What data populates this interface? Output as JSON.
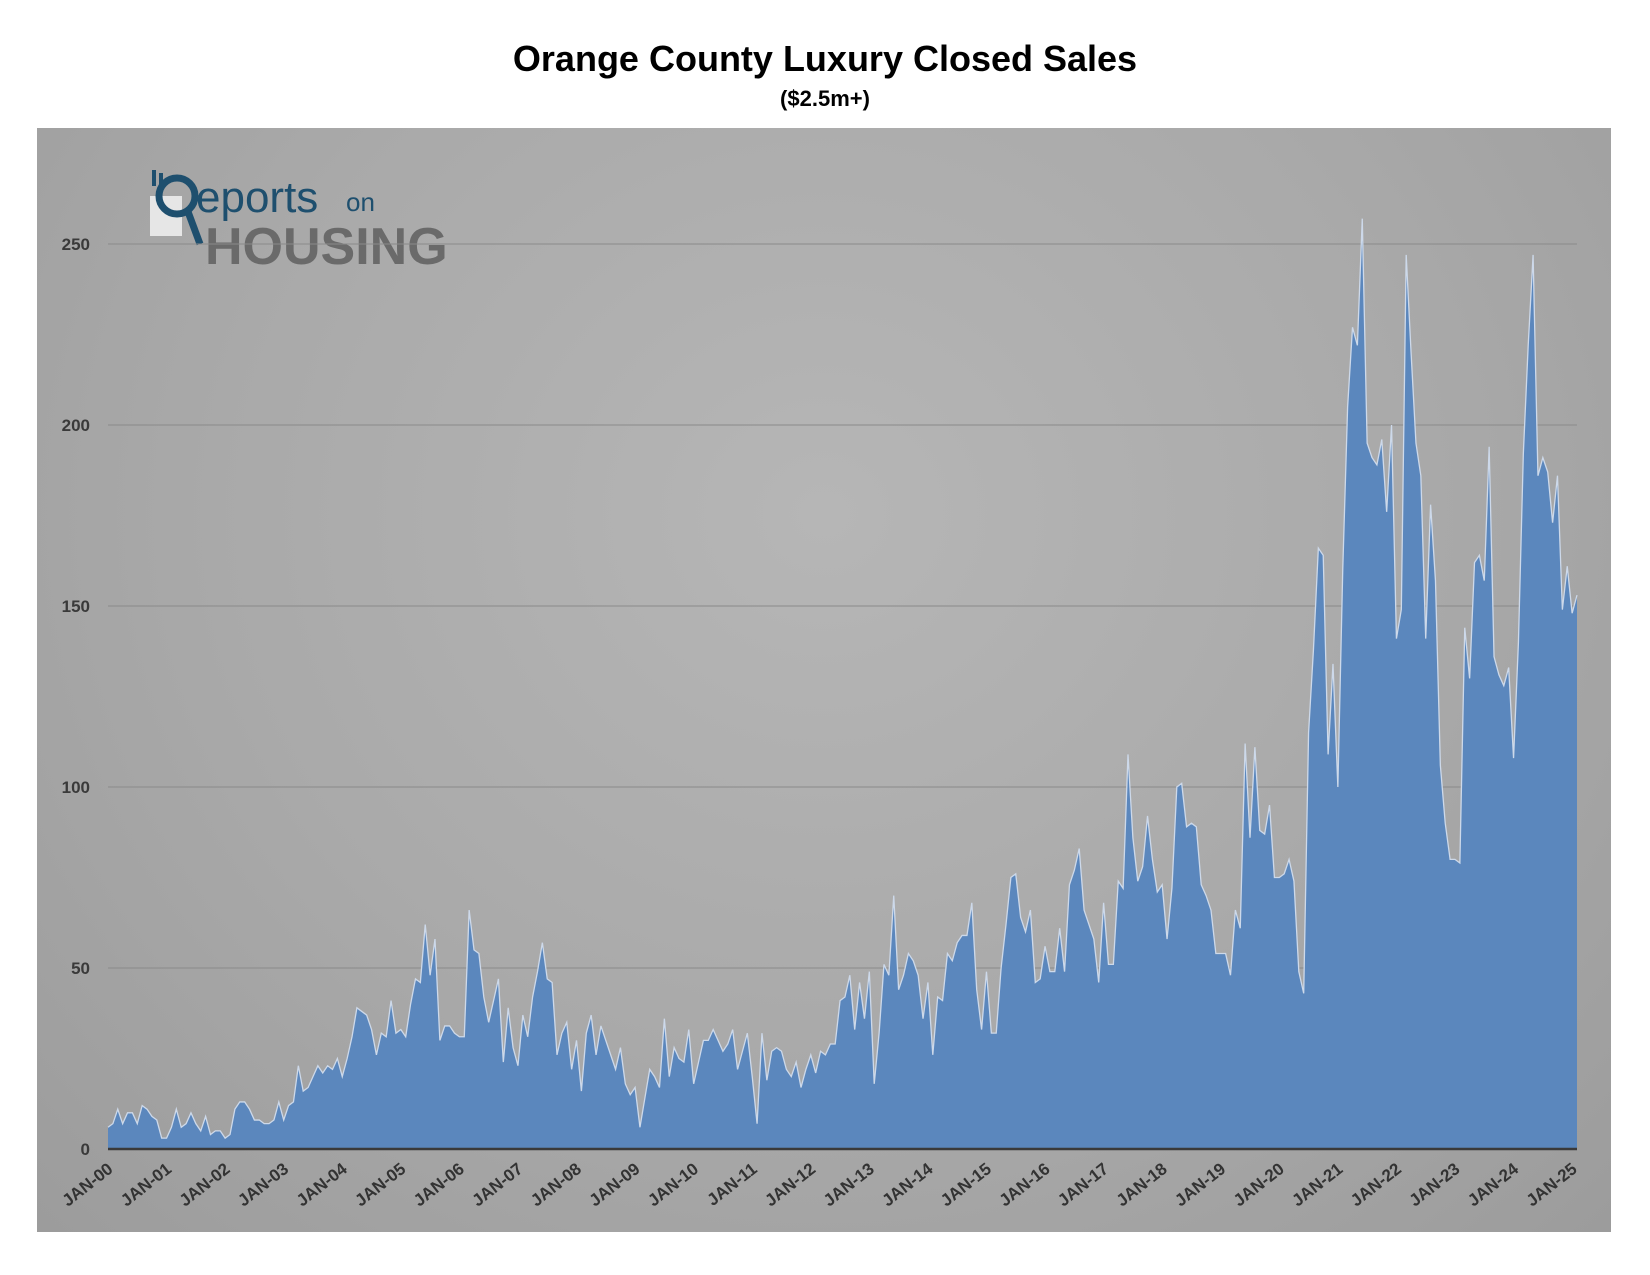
{
  "chart_data": {
    "type": "area",
    "title": "Orange County Luxury Closed Sales",
    "subtitle": "($2.5m+)",
    "xlabel": "",
    "ylabel": "",
    "ylim": [
      0,
      260
    ],
    "yticks": [
      0,
      50,
      100,
      150,
      200,
      250
    ],
    "xtick_labels": [
      "JAN-00",
      "JAN-01",
      "JAN-02",
      "JAN-03",
      "JAN-04",
      "JAN-05",
      "JAN-06",
      "JAN-07",
      "JAN-08",
      "JAN-09",
      "JAN-10",
      "JAN-11",
      "JAN-12",
      "JAN-13",
      "JAN-14",
      "JAN-15",
      "JAN-16",
      "JAN-17",
      "JAN-18",
      "JAN-19",
      "JAN-20",
      "JAN-21",
      "JAN-22",
      "JAN-23",
      "JAN-24",
      "JAN-25"
    ],
    "x_start": "JAN-00",
    "x_frequency": "monthly",
    "grid": true,
    "legend": "none",
    "fill_color": "#5b87bd",
    "line_color": "#cdd9ea",
    "values": [
      6,
      7,
      11,
      7,
      10,
      10,
      7,
      12,
      11,
      9,
      8,
      3,
      3,
      6,
      11,
      6,
      7,
      10,
      7,
      5,
      9,
      4,
      5,
      5,
      3,
      4,
      11,
      13,
      13,
      11,
      8,
      8,
      7,
      7,
      8,
      13,
      8,
      12,
      13,
      23,
      16,
      17,
      20,
      23,
      21,
      23,
      22,
      25,
      20,
      25,
      31,
      39,
      38,
      37,
      33,
      26,
      32,
      31,
      41,
      32,
      33,
      31,
      40,
      47,
      46,
      62,
      48,
      58,
      30,
      34,
      34,
      32,
      31,
      31,
      66,
      55,
      54,
      42,
      35,
      41,
      47,
      24,
      39,
      28,
      23,
      37,
      31,
      42,
      49,
      57,
      47,
      46,
      26,
      32,
      35,
      22,
      30,
      16,
      32,
      37,
      26,
      34,
      30,
      26,
      22,
      28,
      18,
      15,
      17,
      6,
      14,
      22,
      20,
      17,
      36,
      20,
      28,
      25,
      24,
      33,
      18,
      24,
      30,
      30,
      33,
      30,
      27,
      29,
      33,
      22,
      27,
      32,
      20,
      7,
      32,
      19,
      27,
      28,
      27,
      22,
      20,
      24,
      17,
      22,
      26,
      21,
      27,
      26,
      29,
      29,
      41,
      42,
      48,
      33,
      46,
      36,
      49,
      18,
      32,
      51,
      48,
      70,
      44,
      48,
      54,
      52,
      48,
      36,
      46,
      26,
      42,
      41,
      54,
      52,
      57,
      59,
      59,
      68,
      44,
      33,
      49,
      32,
      32,
      50,
      62,
      75,
      76,
      64,
      60,
      66,
      46,
      47,
      56,
      49,
      49,
      61,
      49,
      73,
      77,
      83,
      66,
      62,
      58,
      46,
      68,
      51,
      51,
      74,
      72,
      109,
      86,
      74,
      78,
      92,
      80,
      71,
      73,
      58,
      72,
      100,
      101,
      89,
      90,
      89,
      73,
      70,
      66,
      54,
      54,
      54,
      48,
      66,
      61,
      112,
      86,
      111,
      88,
      87,
      95,
      75,
      75,
      76,
      80,
      74,
      49,
      43,
      115,
      138,
      166,
      164,
      109,
      134,
      100,
      160,
      205,
      227,
      222,
      257,
      195,
      191,
      189,
      196,
      176,
      200,
      141,
      149,
      247,
      220,
      195,
      186,
      141,
      178,
      157,
      106,
      90,
      80,
      80,
      79,
      144,
      130,
      162,
      164,
      157,
      194,
      136,
      131,
      128,
      133,
      108,
      140,
      192,
      222,
      247,
      186,
      191,
      187,
      173,
      186,
      149,
      161,
      148,
      153
    ]
  }
}
